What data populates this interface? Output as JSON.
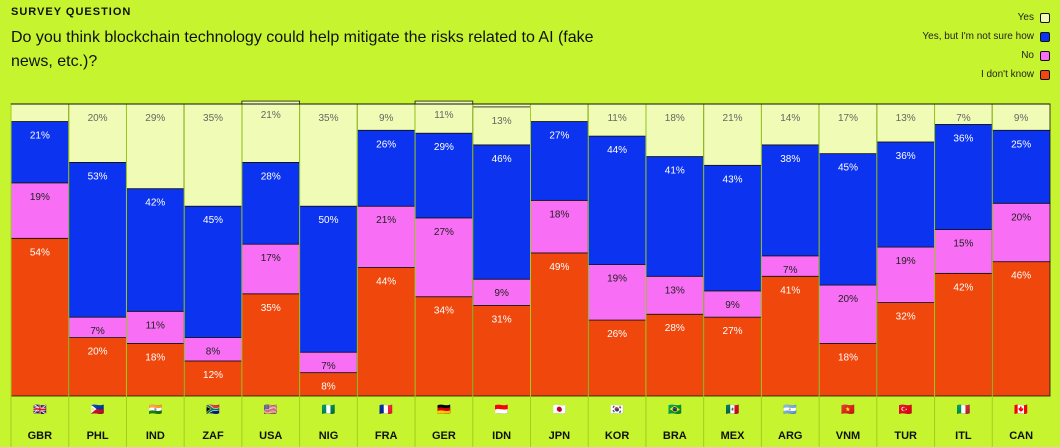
{
  "header": {
    "label": "SURVEY QUESTION",
    "question": "Do you think blockchain technology could help mitigate the risks related to AI (fake news, etc.)?"
  },
  "legend": [
    {
      "label": "Yes",
      "color": "#f0fbb5"
    },
    {
      "label": "Yes, but I'm not sure how",
      "color": "#0c33f0"
    },
    {
      "label": "No",
      "color": "#f86ef4"
    },
    {
      "label": "I don't know",
      "color": "#f0470c"
    }
  ],
  "chart_data": {
    "type": "bar",
    "stacked": true,
    "normalized": true,
    "categories": [
      "GBR",
      "PHL",
      "IND",
      "ZAF",
      "USA",
      "NIG",
      "FRA",
      "GER",
      "IDN",
      "JPN",
      "KOR",
      "BRA",
      "MEX",
      "ARG",
      "VNM",
      "TUR",
      "ITL",
      "CAN"
    ],
    "flags": [
      "🇬🇧",
      "🇵🇭",
      "🇮🇳",
      "🇿🇦",
      "🇺🇸",
      "🇳🇬",
      "🇫🇷",
      "🇩🇪",
      "🇮🇩",
      "🇯🇵",
      "🇰🇷",
      "🇧🇷",
      "🇲🇽",
      "🇦🇷",
      "🇻🇳",
      "🇹🇷",
      "🇮🇹",
      "🇨🇦"
    ],
    "series": [
      {
        "name": "I don't know",
        "color": "#f0470c",
        "values": [
          54,
          20,
          18,
          12,
          35,
          8,
          44,
          34,
          31,
          49,
          26,
          28,
          27,
          41,
          18,
          32,
          42,
          46
        ]
      },
      {
        "name": "No",
        "color": "#f86ef4",
        "values": [
          19,
          7,
          11,
          8,
          17,
          7,
          21,
          27,
          9,
          18,
          19,
          13,
          9,
          7,
          20,
          19,
          15,
          20
        ]
      },
      {
        "name": "Yes, but I'm not sure how",
        "color": "#0c33f0",
        "values": [
          21,
          53,
          42,
          45,
          28,
          50,
          26,
          29,
          46,
          27,
          44,
          41,
          43,
          38,
          45,
          36,
          36,
          25
        ]
      },
      {
        "name": "Yes",
        "color": "#f0fbb5",
        "values": [
          6,
          20,
          29,
          35,
          21,
          35,
          9,
          11,
          13,
          6,
          11,
          18,
          21,
          14,
          17,
          13,
          7,
          9
        ]
      }
    ],
    "labels": {
      "Yes": [
        "",
        "20%",
        "29%",
        "35%",
        "21%",
        "35%",
        "9%",
        "11%",
        "13%",
        "",
        "11%",
        "18%",
        "21%",
        "14%",
        "17%",
        "13%",
        "7%",
        "9%"
      ],
      "Yes, but I'm not sure how": [
        "21%",
        "53%",
        "42%",
        "45%",
        "28%",
        "50%",
        "26%",
        "29%",
        "46%",
        "27%",
        "44%",
        "41%",
        "43%",
        "38%",
        "45%",
        "36%",
        "36%",
        "25%"
      ],
      "No": [
        "19%",
        "7%",
        "11%",
        "8%",
        "17%",
        "7%",
        "21%",
        "27%",
        "9%",
        "18%",
        "19%",
        "13%",
        "9%",
        "7%",
        "20%",
        "19%",
        "15%",
        "20%"
      ],
      "I don't know": [
        "54%",
        "20%",
        "18%",
        "12%",
        "35%",
        "8%",
        "44%",
        "34%",
        "31%",
        "49%",
        "26%",
        "28%",
        "27%",
        "41%",
        "18%",
        "32%",
        "42%",
        "46%"
      ]
    },
    "ylim": [
      0,
      100
    ]
  }
}
